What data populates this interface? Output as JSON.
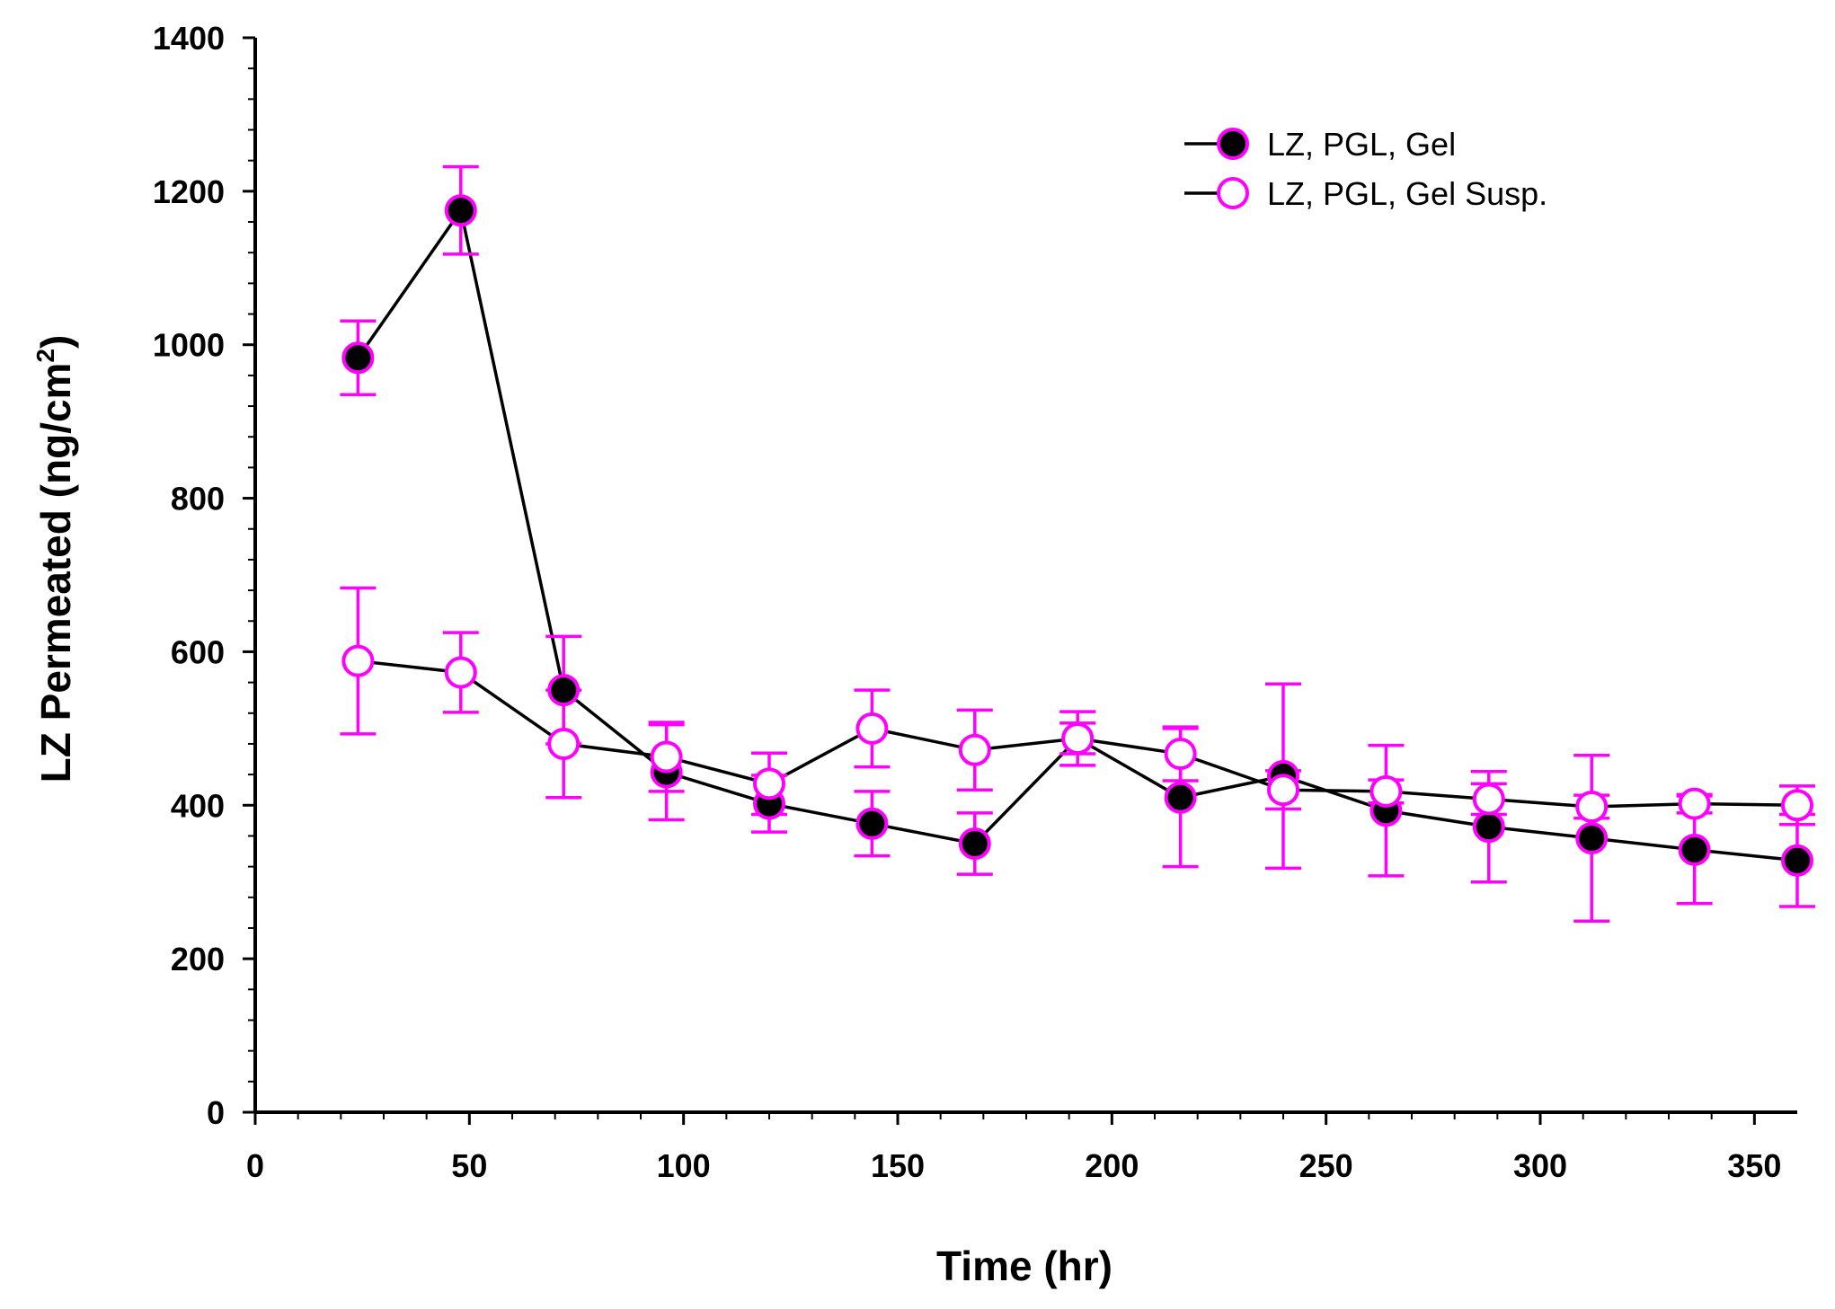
{
  "chart_data": {
    "type": "line",
    "title": "",
    "xlabel": "Time (hr)",
    "ylabel": "LZ Permeated (ng/cm",
    "ylabel_superscript": "2",
    "ylabel_suffix": ")",
    "xlim": [
      0,
      360
    ],
    "ylim": [
      0,
      1400
    ],
    "x_ticks": [
      0,
      50,
      100,
      150,
      200,
      250,
      300,
      350
    ],
    "x_tick_labels": [
      "0",
      "50",
      "100",
      "150",
      "200",
      "250",
      "300",
      "350"
    ],
    "y_ticks": [
      0,
      200,
      400,
      600,
      800,
      1000,
      1200,
      1400
    ],
    "y_tick_labels": [
      "0",
      "200",
      "400",
      "600",
      "800",
      "1000",
      "1200",
      "1400"
    ],
    "grid": false,
    "legend_position": "top-right",
    "colors": {
      "marker_edge": "#ff00ff",
      "line": "#000000",
      "error_bar": "#ff00ff",
      "filled_marker": "#000000",
      "open_marker": "#ffffff"
    },
    "x": [
      24,
      48,
      72,
      96,
      120,
      144,
      168,
      192,
      216,
      240,
      264,
      288,
      312,
      336,
      360
    ],
    "series": [
      {
        "name": "LZ, PGL, Gel",
        "marker": "filled-circle",
        "values": [
          983,
          1175,
          550,
          443,
          402,
          376,
          350,
          487,
          410,
          438,
          393,
          372,
          357,
          342,
          328
        ],
        "errors": [
          48,
          57,
          70,
          62,
          37,
          42,
          40,
          35,
          90,
          120,
          85,
          72,
          108,
          70,
          60
        ]
      },
      {
        "name": "LZ, PGL, Gel Susp.",
        "marker": "open-circle",
        "values": [
          588,
          573,
          480,
          463,
          428,
          500,
          472,
          487,
          467,
          420,
          418,
          408,
          398,
          402,
          400
        ],
        "errors": [
          95,
          52,
          70,
          45,
          40,
          50,
          52,
          20,
          35,
          25,
          15,
          20,
          15,
          12,
          25
        ]
      }
    ]
  }
}
